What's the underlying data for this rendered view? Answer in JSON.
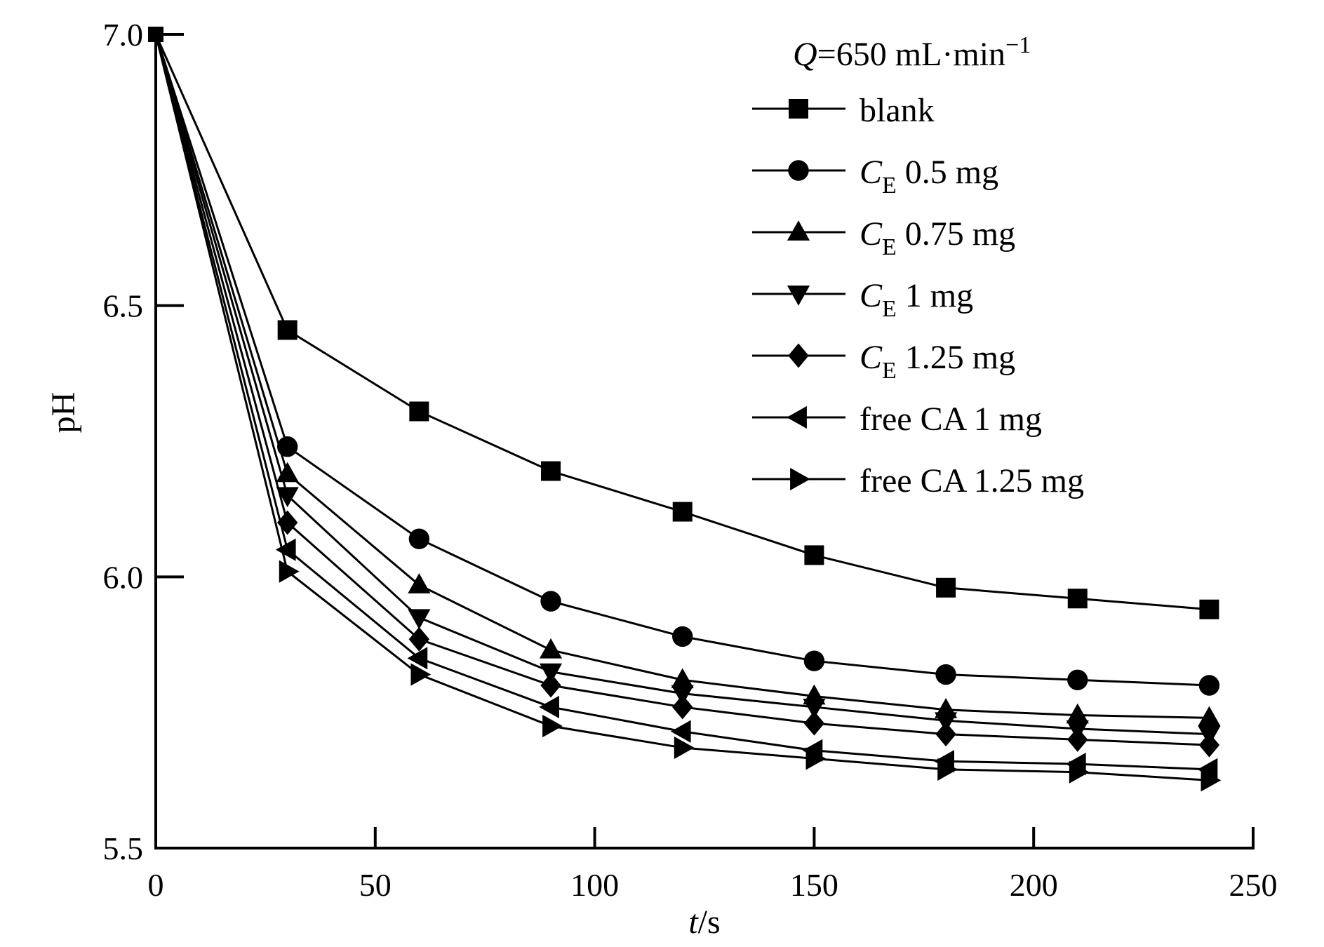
{
  "chart_data": {
    "type": "line",
    "title": "",
    "x": [
      0,
      30,
      60,
      90,
      120,
      150,
      180,
      210,
      240
    ],
    "xlim": [
      0,
      250
    ],
    "ylim": [
      5.5,
      7.0
    ],
    "xticks": [
      "0",
      "50",
      "100",
      "150",
      "200",
      "250"
    ],
    "yticks": [
      "5.5",
      "6.0",
      "6.5",
      "7.0"
    ],
    "xlabel": {
      "italic": "t",
      "rest": "/s"
    },
    "ylabel": "pH",
    "legend_title": {
      "italic": "Q",
      "rest": "=650 mL·min",
      "sup": "−1"
    },
    "legend_position": "top-right",
    "series": [
      {
        "name": "blank",
        "label_parts": {
          "main": "blank"
        },
        "marker": "square",
        "values": [
          7.0,
          6.455,
          6.305,
          6.195,
          6.12,
          6.04,
          5.98,
          5.96,
          5.94
        ]
      },
      {
        "name": "CE 0.5 mg",
        "label_parts": {
          "italic": "C",
          "sub": "E",
          "rest": " 0.5 mg"
        },
        "marker": "circle",
        "values": [
          7.0,
          6.24,
          6.07,
          5.955,
          5.89,
          5.845,
          5.82,
          5.81,
          5.8
        ]
      },
      {
        "name": "CE 0.75 mg",
        "label_parts": {
          "italic": "C",
          "sub": "E",
          "rest": " 0.75 mg"
        },
        "marker": "triangle-up",
        "values": [
          7.0,
          6.19,
          5.985,
          5.865,
          5.81,
          5.78,
          5.755,
          5.745,
          5.74
        ]
      },
      {
        "name": "CE 1 mg",
        "label_parts": {
          "italic": "C",
          "sub": "E",
          "rest": " 1 mg"
        },
        "marker": "triangle-down",
        "values": [
          7.0,
          6.15,
          5.925,
          5.825,
          5.785,
          5.76,
          5.735,
          5.72,
          5.71
        ]
      },
      {
        "name": "CE 1.25 mg",
        "label_parts": {
          "italic": "C",
          "sub": "E",
          "rest": " 1.25 mg"
        },
        "marker": "diamond",
        "values": [
          7.0,
          6.1,
          5.885,
          5.8,
          5.76,
          5.73,
          5.71,
          5.7,
          5.69
        ]
      },
      {
        "name": "free CA 1 mg",
        "label_parts": {
          "main": "free CA 1 mg"
        },
        "marker": "triangle-left",
        "values": [
          7.0,
          6.05,
          5.85,
          5.76,
          5.715,
          5.68,
          5.66,
          5.655,
          5.645
        ]
      },
      {
        "name": "free CA 1.25 mg",
        "label_parts": {
          "main": "free CA 1.25 mg"
        },
        "marker": "triangle-right",
        "values": [
          7.0,
          6.01,
          5.82,
          5.725,
          5.685,
          5.665,
          5.645,
          5.64,
          5.625
        ]
      }
    ]
  }
}
